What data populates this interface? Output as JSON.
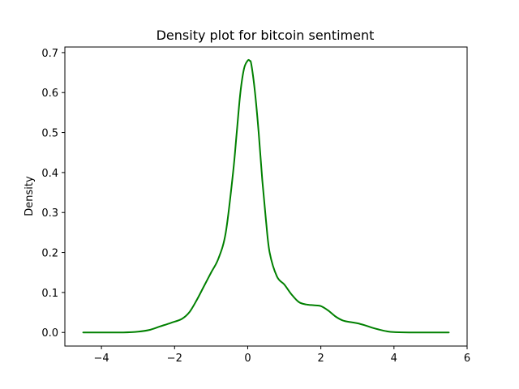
{
  "chart_data": {
    "type": "line",
    "title": "Density plot for bitcoin sentiment",
    "xlabel": "",
    "ylabel": "Density",
    "xlim": [
      -5,
      6
    ],
    "ylim": [
      -0.034,
      0.714
    ],
    "xticks": [
      -4,
      -2,
      0,
      2,
      4,
      6
    ],
    "xtick_labels": [
      "−4",
      "−2",
      "0",
      "2",
      "4",
      "6"
    ],
    "yticks": [
      0.0,
      0.1,
      0.2,
      0.3,
      0.4,
      0.5,
      0.6,
      0.7
    ],
    "ytick_labels": [
      "0.0",
      "0.1",
      "0.2",
      "0.3",
      "0.4",
      "0.5",
      "0.6",
      "0.7"
    ],
    "grid": false,
    "legend": null,
    "series": [
      {
        "color": "#008000",
        "x": [
          -4.5,
          -3.8,
          -3.4,
          -3.0,
          -2.7,
          -2.4,
          -2.1,
          -1.8,
          -1.6,
          -1.4,
          -1.2,
          -1.0,
          -0.8,
          -0.6,
          -0.4,
          -0.3,
          -0.2,
          -0.1,
          0.0,
          0.05,
          0.1,
          0.2,
          0.3,
          0.4,
          0.5,
          0.6,
          0.8,
          1.0,
          1.2,
          1.4,
          1.6,
          1.8,
          2.0,
          2.2,
          2.4,
          2.6,
          2.8,
          3.0,
          3.2,
          3.4,
          3.6,
          3.8,
          4.0,
          4.5,
          5.0,
          5.5
        ],
        "y": [
          0.0,
          0.0,
          0.0,
          0.002,
          0.006,
          0.015,
          0.024,
          0.034,
          0.05,
          0.08,
          0.115,
          0.15,
          0.185,
          0.25,
          0.4,
          0.5,
          0.6,
          0.66,
          0.68,
          0.68,
          0.67,
          0.6,
          0.5,
          0.38,
          0.28,
          0.2,
          0.14,
          0.12,
          0.095,
          0.076,
          0.07,
          0.068,
          0.066,
          0.055,
          0.04,
          0.03,
          0.026,
          0.023,
          0.018,
          0.012,
          0.007,
          0.003,
          0.001,
          0.0,
          0.0,
          0.0
        ]
      }
    ]
  }
}
